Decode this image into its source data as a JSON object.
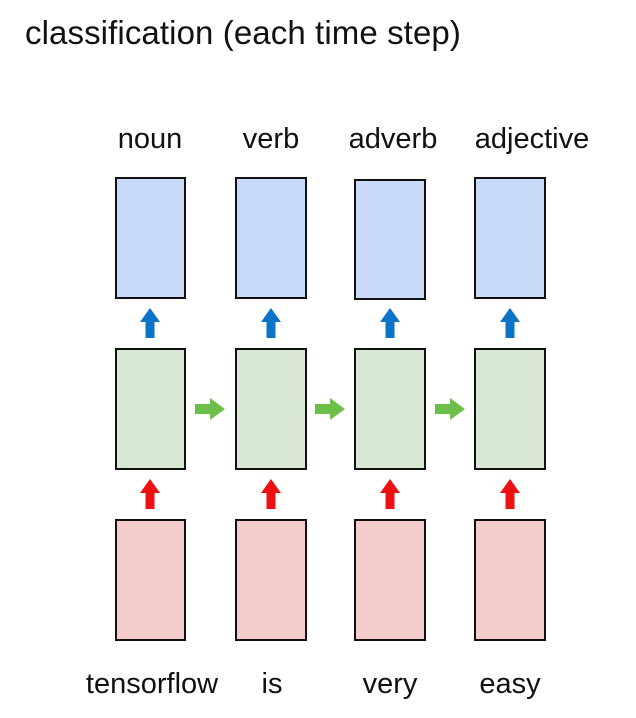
{
  "title": "classification (each time step)",
  "outputs": [
    "noun",
    "verb",
    "adverb",
    "adjective"
  ],
  "inputs": [
    "tensorflow",
    "is",
    "very",
    "easy"
  ],
  "colors": {
    "output_fill": "#c9daf8",
    "hidden_fill": "#d9e8d4",
    "input_fill": "#f4cccc",
    "box_stroke": "#111111",
    "output_arrow": "#0b74c6",
    "input_arrow": "#ee1111",
    "recurrent_arrow": "#6cc04a"
  },
  "icons": {
    "vertical_arrow": "arrow-up-icon",
    "horizontal_arrow": "arrow-right-icon"
  }
}
